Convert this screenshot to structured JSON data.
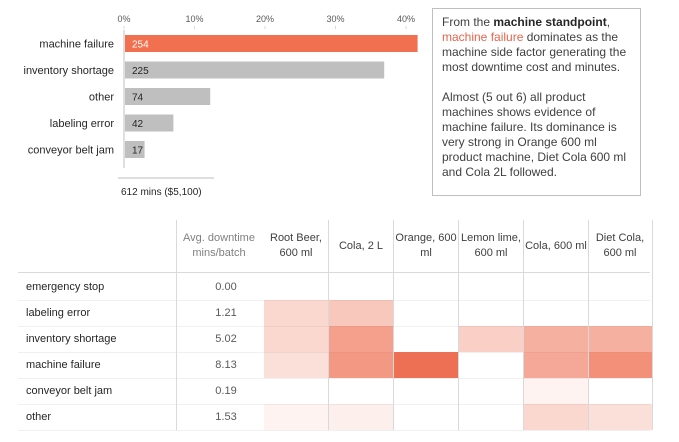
{
  "chart_data": [
    {
      "type": "bar",
      "orientation": "horizontal",
      "categories": [
        "machine failure",
        "inventory shortage",
        "other",
        "labeling error",
        "conveyor belt jam"
      ],
      "values": [
        254,
        225,
        74,
        42,
        17
      ],
      "x_ticks": [
        "0%",
        "10%",
        "20%",
        "30%",
        "40%"
      ],
      "xlim": [
        0,
        0.4
      ],
      "total": 612,
      "footer_label": "612 mins ($5,100)",
      "highlight_category": "machine failure",
      "colors": {
        "highlight": "#f0704f",
        "default": "#bfbfbf"
      }
    },
    {
      "type": "heatmap",
      "avg_header": "Avg. downtime mins/batch",
      "columns": [
        "Root Beer, 600 ml",
        "Cola, 2 L",
        "Orange, 600 ml",
        "Lemon lime, 600 ml",
        "Cola, 600 ml",
        "Diet Cola, 600 ml"
      ],
      "rows": [
        {
          "label": "emergency stop",
          "avg": "0.00",
          "cells": [
            0,
            0,
            0,
            0,
            0,
            0
          ]
        },
        {
          "label": "labeling error",
          "avg": "1.21",
          "cells": [
            0.25,
            0.35,
            0,
            0,
            0,
            0
          ]
        },
        {
          "label": "inventory shortage",
          "avg": "5.02",
          "cells": [
            0.25,
            0.6,
            0,
            0.3,
            0.5,
            0.5
          ]
        },
        {
          "label": "machine failure",
          "avg": "8.13",
          "cells": [
            0.2,
            0.65,
            0.9,
            0,
            0.55,
            0.7
          ]
        },
        {
          "label": "conveyor belt jam",
          "avg": "0.19",
          "cells": [
            0,
            0,
            0,
            0,
            0.08,
            0
          ]
        },
        {
          "label": "other",
          "avg": "1.53",
          "cells": [
            0.08,
            0.1,
            0,
            0,
            0.25,
            0.2
          ]
        }
      ],
      "colors": {
        "max": "#ec6141"
      }
    }
  ],
  "note": {
    "p1_pre": "From the ",
    "p1_bold": "machine standpoint",
    "p1_comma": ",",
    "p1_accent": "machine failure",
    "p1_post": " dominates as the machine side factor generating the most downtime cost and minutes.",
    "p2": "Almost (5 out 6) all product machines shows evidence of machine failure. Its dominance is very strong in Orange 600 ml product machine, Diet Cola 600 ml and Cola 2L followed."
  }
}
